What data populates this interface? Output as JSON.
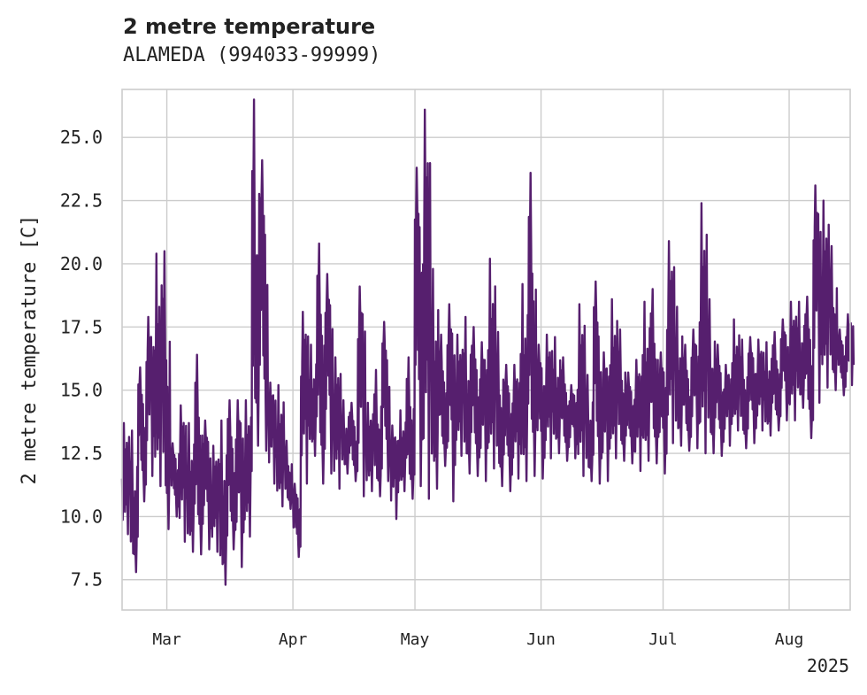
{
  "chart_data": {
    "type": "line",
    "title": "2 metre temperature",
    "subtitle": "ALAMEDA (994033-99999)",
    "ylabel": "2 metre temperature [C]",
    "xlabel": "",
    "x_range": [
      "2025-02-18",
      "2025-08-16"
    ],
    "ylim": [
      6.3,
      26.9
    ],
    "y_ticks": [
      7.5,
      10.0,
      12.5,
      15.0,
      17.5,
      20.0,
      22.5,
      25.0
    ],
    "y_tick_labels": [
      "7.5",
      "10.0",
      "12.5",
      "15.0",
      "17.5",
      "20.0",
      "22.5",
      "25.0"
    ],
    "x_ticks": [
      "2025-03-01",
      "2025-04-01",
      "2025-05-01",
      "2025-06-01",
      "2025-07-01",
      "2025-08-01"
    ],
    "x_tick_labels": [
      "Mar",
      "Apr",
      "May",
      "Jun",
      "Jul",
      "Aug"
    ],
    "x_year_label": "2025",
    "grid": true,
    "line_color": "#561f6e",
    "series": [
      {
        "x": [
          "2025-02-18",
          "2025-02-20",
          "2025-02-22",
          "2025-02-24",
          "2025-02-26",
          "2025-02-28",
          "2025-03-02",
          "2025-03-04",
          "2025-03-06",
          "2025-03-08",
          "2025-03-10",
          "2025-03-12",
          "2025-03-14",
          "2025-03-16",
          "2025-03-18",
          "2025-03-20",
          "2025-03-22",
          "2025-03-24",
          "2025-03-26",
          "2025-03-28",
          "2025-03-30",
          "2025-04-01",
          "2025-04-03",
          "2025-04-05",
          "2025-04-07",
          "2025-04-09",
          "2025-04-11",
          "2025-04-13",
          "2025-04-15",
          "2025-04-17",
          "2025-04-19",
          "2025-04-21",
          "2025-04-23",
          "2025-04-25",
          "2025-04-27",
          "2025-04-29",
          "2025-05-01",
          "2025-05-03",
          "2025-05-05",
          "2025-05-07",
          "2025-05-09",
          "2025-05-11",
          "2025-05-13",
          "2025-05-15",
          "2025-05-17",
          "2025-05-19",
          "2025-05-21",
          "2025-05-23",
          "2025-05-25",
          "2025-05-27",
          "2025-05-29",
          "2025-05-31",
          "2025-06-02",
          "2025-06-04",
          "2025-06-06",
          "2025-06-08",
          "2025-06-10",
          "2025-06-12",
          "2025-06-14",
          "2025-06-16",
          "2025-06-18",
          "2025-06-20",
          "2025-06-22",
          "2025-06-24",
          "2025-06-26",
          "2025-06-28",
          "2025-06-30",
          "2025-07-02",
          "2025-07-04",
          "2025-07-06",
          "2025-07-08",
          "2025-07-10",
          "2025-07-12",
          "2025-07-14",
          "2025-07-16",
          "2025-07-18",
          "2025-07-20",
          "2025-07-22",
          "2025-07-24",
          "2025-07-26",
          "2025-07-28",
          "2025-07-30",
          "2025-08-01",
          "2025-08-03",
          "2025-08-05",
          "2025-08-07",
          "2025-08-09",
          "2025-08-11",
          "2025-08-13",
          "2025-08-15"
        ],
        "min": [
          9.3,
          7.8,
          10.6,
          11.6,
          11.2,
          9.5,
          10.0,
          9.0,
          8.6,
          8.5,
          8.7,
          8.6,
          7.3,
          8.7,
          8.0,
          9.2,
          12.8,
          12.6,
          11.3,
          10.4,
          10.3,
          8.4,
          11.3,
          12.4,
          11.3,
          11.7,
          11.1,
          11.7,
          11.4,
          10.8,
          11.0,
          10.8,
          11.4,
          9.9,
          11.0,
          10.7,
          11.2,
          10.7,
          11.1,
          12.0,
          10.6,
          12.4,
          11.7,
          11.6,
          11.4,
          11.9,
          11.2,
          11.0,
          11.5,
          11.4,
          11.6,
          11.5,
          12.3,
          12.5,
          12.2,
          12.3,
          11.6,
          11.4,
          11.3,
          11.4,
          12.3,
          12.2,
          12.1,
          11.8,
          12.2,
          12.1,
          11.7,
          12.9,
          12.8,
          12.6,
          12.7,
          12.5,
          12.5,
          12.4,
          12.8,
          13.4,
          12.7,
          12.9,
          13.4,
          13.2,
          13.4,
          13.8,
          13.8,
          14.3,
          13.1,
          14.5,
          15.1,
          15.0,
          14.8,
          15.2
        ],
        "max": [
          13.7,
          13.4,
          15.9,
          17.9,
          20.4,
          20.5,
          12.9,
          14.4,
          13.7,
          16.4,
          13.8,
          12.8,
          13.8,
          14.6,
          14.6,
          14.6,
          26.5,
          24.1,
          15.3,
          15.2,
          13.0,
          11.3,
          18.1,
          16.8,
          20.8,
          19.6,
          16.3,
          14.6,
          14.5,
          19.1,
          14.5,
          15.8,
          17.7,
          13.6,
          14.2,
          16.3,
          23.8,
          26.1,
          19.8,
          17.2,
          18.4,
          17.2,
          17.9,
          17.5,
          16.9,
          20.2,
          17.3,
          16.0,
          16.0,
          19.2,
          23.6,
          16.8,
          17.2,
          17.1,
          16.3,
          15.2,
          18.4,
          15.6,
          19.3,
          16.5,
          18.6,
          17.4,
          15.7,
          16.2,
          18.5,
          19.0,
          16.5,
          20.9,
          18.3,
          16.8,
          17.4,
          22.4,
          18.6,
          16.8,
          16.0,
          17.8,
          17.0,
          17.1,
          17.0,
          16.9,
          17.3,
          17.8,
          18.5,
          18.5,
          18.7,
          23.1,
          22.5,
          20.7,
          17.4,
          18.0
        ]
      }
    ]
  }
}
